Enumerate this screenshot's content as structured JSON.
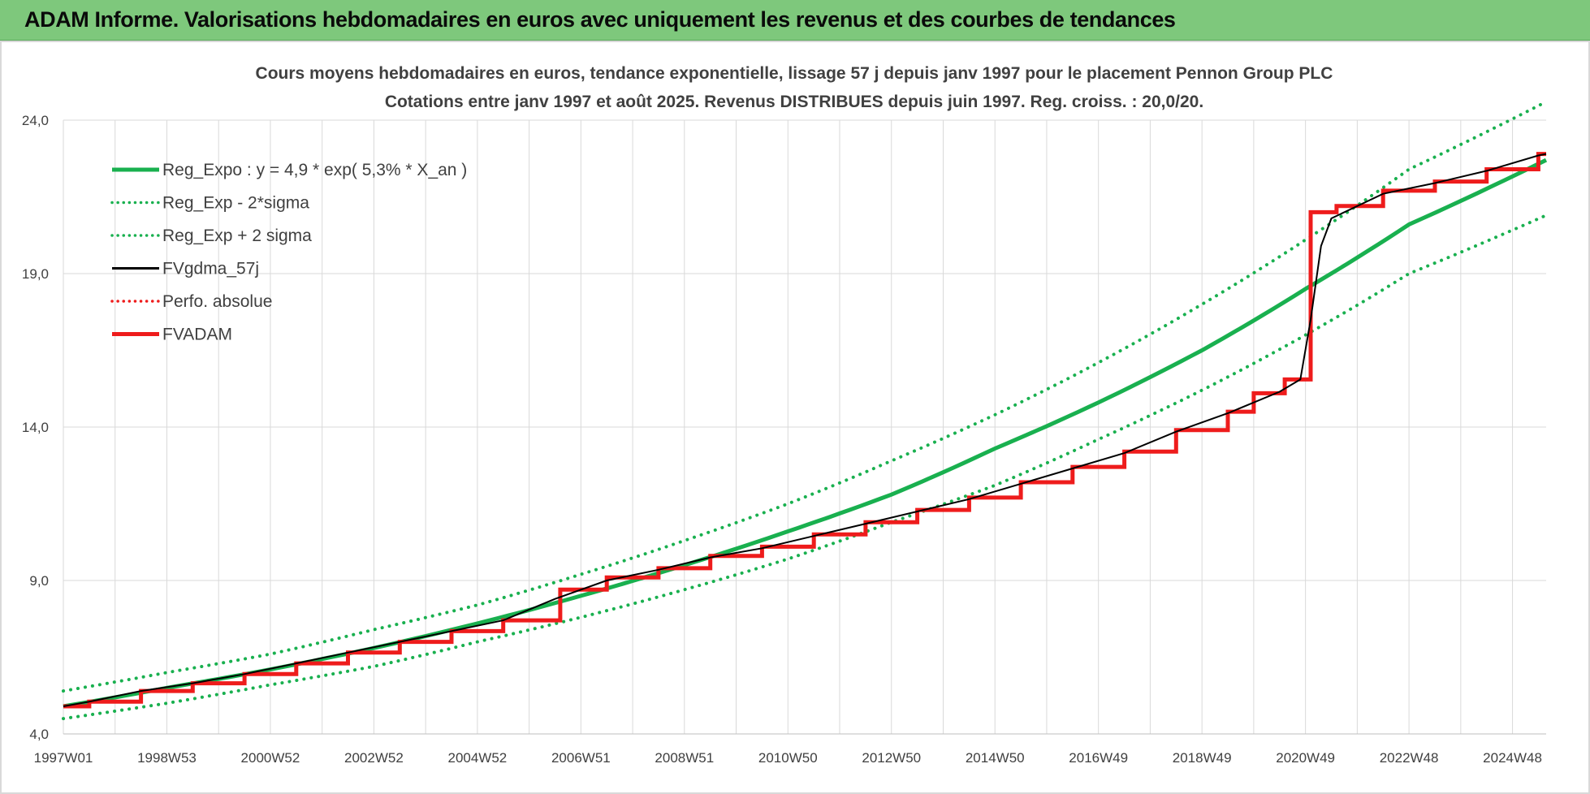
{
  "banner": {
    "title": "ADAM Informe. Valorisations hebdomadaires en euros avec uniquement les revenus et des courbes de tendances"
  },
  "colors": {
    "banner_bg": "#7ec87c",
    "reg_expo": "#19b04f",
    "fvgdma": "#000000",
    "fvadam": "#ee1c1c",
    "grid": "#d9d9d9",
    "text": "#404040"
  },
  "chart_data": {
    "type": "line",
    "title_line1": "Cours moyens hebdomadaires en euros, tendance exponentielle, lissage 57 j depuis janv 1997 pour le placement Pennon Group PLC",
    "title_line2": "Cotations entre janv 1997 et août 2025.  Revenus DISTRIBUES depuis juin 1997.  Reg. croiss. : 20,0/20.",
    "ylim": [
      4.0,
      24.0
    ],
    "y_ticks": [
      "4,0",
      "9,0",
      "14,0",
      "19,0",
      "24,0"
    ],
    "y_tick_values": [
      4,
      9,
      14,
      19,
      24
    ],
    "x_range": [
      1997.0,
      2025.65
    ],
    "x_tick_labels": [
      "1997W01",
      "1998W53",
      "2000W52",
      "2002W52",
      "2004W52",
      "2006W51",
      "2008W51",
      "2010W50",
      "2012W50",
      "2014W50",
      "2016W49",
      "2018W49",
      "2020W49",
      "2022W48",
      "2024W48"
    ],
    "x_tick_values": [
      1997.0,
      1999.0,
      2001.0,
      2003.0,
      2005.0,
      2007.0,
      2009.0,
      2011.0,
      2013.0,
      2015.0,
      2017.0,
      2019.0,
      2021.0,
      2023.0,
      2025.0
    ],
    "grid": true,
    "legend_position": "top-left",
    "legend": [
      {
        "label": "Reg_Expo : y = 4,9 * exp( 5,3% *  X_an )",
        "style": "solid-thick",
        "color": "#19b04f"
      },
      {
        "label": "Reg_Exp - 2*sigma",
        "style": "dotted",
        "color": "#19b04f"
      },
      {
        "label": "Reg_Exp + 2 sigma",
        "style": "dotted",
        "color": "#19b04f"
      },
      {
        "label": "FVgdma_57j",
        "style": "solid",
        "color": "#000000"
      },
      {
        "label": "Perfo. absolue",
        "style": "dotted",
        "color": "#ee1c1c"
      },
      {
        "label": "FVADAM",
        "style": "solid-thick",
        "color": "#ee1c1c"
      }
    ],
    "series": [
      {
        "name": "Reg_Expo : y = 4,9 * exp( 5,3% *  X_an )",
        "x": [
          1997,
          1999,
          2001,
          2003,
          2005,
          2007,
          2009,
          2011,
          2013,
          2015,
          2017,
          2019,
          2021,
          2023,
          2025.65
        ],
        "values": [
          4.9,
          5.5,
          6.1,
          6.8,
          7.6,
          8.5,
          9.5,
          10.6,
          11.8,
          13.3,
          14.8,
          16.5,
          18.5,
          20.6,
          22.7
        ]
      },
      {
        "name": "Reg_Exp - 2*sigma",
        "x": [
          1997,
          1999,
          2001,
          2003,
          2005,
          2007,
          2009,
          2011,
          2013,
          2015,
          2017,
          2019,
          2021,
          2023,
          2025.65
        ],
        "values": [
          4.5,
          5.0,
          5.6,
          6.2,
          7.0,
          7.8,
          8.7,
          9.7,
          10.9,
          12.1,
          13.6,
          15.2,
          17.0,
          19.0,
          20.9
        ]
      },
      {
        "name": "Reg_Exp + 2 sigma",
        "x": [
          1997,
          1999,
          2001,
          2003,
          2005,
          2007,
          2009,
          2011,
          2013,
          2015,
          2017,
          2019,
          2021,
          2023,
          2025.65
        ],
        "values": [
          5.4,
          6.0,
          6.6,
          7.4,
          8.2,
          9.2,
          10.3,
          11.5,
          12.9,
          14.4,
          16.1,
          18.0,
          20.1,
          22.4,
          24.6
        ]
      },
      {
        "name": "FVADAM",
        "x": [
          1997.0,
          1997.5,
          1998.5,
          1999.5,
          2000.5,
          2001.5,
          2002.5,
          2003.5,
          2004.5,
          2005.5,
          2006.6,
          2007.5,
          2008.5,
          2009.5,
          2010.5,
          2011.5,
          2012.5,
          2013.5,
          2014.5,
          2015.5,
          2016.5,
          2017.5,
          2018.5,
          2019.5,
          2020.0,
          2020.6,
          2021.1,
          2021.6,
          2022.5,
          2023.5,
          2024.5,
          2025.5,
          2025.65
        ],
        "values": [
          4.9,
          5.05,
          5.4,
          5.65,
          5.95,
          6.3,
          6.65,
          7.0,
          7.35,
          7.7,
          8.7,
          9.1,
          9.4,
          9.8,
          10.1,
          10.5,
          10.9,
          11.3,
          11.7,
          12.2,
          12.7,
          13.2,
          13.9,
          14.5,
          15.1,
          15.55,
          21.0,
          21.2,
          21.7,
          22.0,
          22.4,
          22.9,
          22.9
        ]
      },
      {
        "name": "FVgdma_57j",
        "x": [
          1997.0,
          1997.5,
          1998.5,
          1999.5,
          2000.5,
          2001.5,
          2002.5,
          2003.5,
          2004.5,
          2005.5,
          2006.5,
          2007.5,
          2008.5,
          2009.5,
          2010.5,
          2011.5,
          2012.5,
          2013.5,
          2014.5,
          2015.5,
          2016.5,
          2017.5,
          2018.5,
          2019.5,
          2020.5,
          2020.9,
          2021.1,
          2021.3,
          2021.5,
          2022.5,
          2023.5,
          2024.5,
          2025.5,
          2025.65
        ],
        "values": [
          4.9,
          5.05,
          5.4,
          5.65,
          5.95,
          6.3,
          6.65,
          7.0,
          7.35,
          7.7,
          8.4,
          9.0,
          9.35,
          9.75,
          10.05,
          10.45,
          10.85,
          11.25,
          11.65,
          12.15,
          12.65,
          13.15,
          13.85,
          14.45,
          15.15,
          15.55,
          17.5,
          19.9,
          20.8,
          21.6,
          21.95,
          22.35,
          22.85,
          22.9
        ]
      }
    ]
  }
}
